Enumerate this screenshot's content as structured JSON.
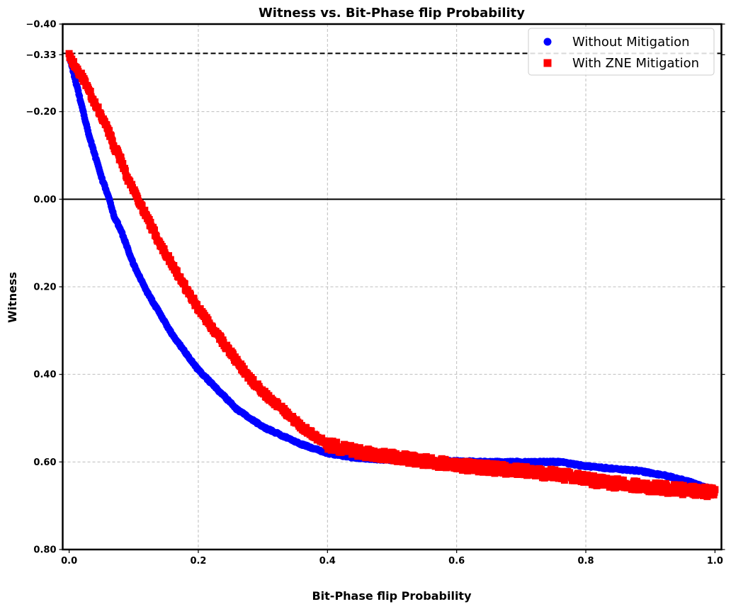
{
  "chart_data": {
    "type": "scatter",
    "title": "Witness vs. Bit-Phase flip Probability",
    "xlabel": "Bit-Phase flip Probability",
    "ylabel": "Witness",
    "xlim": [
      -0.01,
      1.01
    ],
    "ylim": [
      -0.4,
      0.8
    ],
    "y_inverted": true,
    "grid": true,
    "legend_position": "top-right",
    "x_ticks": [
      0.0,
      0.2,
      0.4,
      0.6,
      0.8,
      1.0
    ],
    "x_tick_labels": [
      "0.0",
      "0.2",
      "0.4",
      "0.6",
      "0.8",
      "1.0"
    ],
    "y_ticks": [
      -0.4,
      -0.33,
      -0.2,
      0.0,
      0.2,
      0.4,
      0.6,
      0.8
    ],
    "y_tick_labels": [
      "−0.40",
      "−0.33",
      "−0.20",
      "0.00",
      "0.20",
      "0.40",
      "0.60",
      "0.80"
    ],
    "y_gridlines": [
      -0.2,
      0.2,
      0.4,
      0.6
    ],
    "reference_lines": [
      {
        "y": -0.333,
        "style": "dashed",
        "color": "#000000"
      },
      {
        "y": 0.0,
        "style": "solid",
        "color": "#000000"
      }
    ],
    "series": [
      {
        "name": "Without Mitigation",
        "marker": "circle",
        "color": "#0000ff",
        "x": [
          0.0,
          0.01,
          0.02,
          0.03,
          0.04,
          0.05,
          0.06,
          0.07,
          0.08,
          0.09,
          0.1,
          0.12,
          0.14,
          0.16,
          0.18,
          0.2,
          0.22,
          0.24,
          0.26,
          0.28,
          0.3,
          0.33,
          0.36,
          0.4,
          0.44,
          0.48,
          0.52,
          0.56,
          0.6,
          0.64,
          0.68,
          0.72,
          0.76,
          0.8,
          0.84,
          0.88,
          0.92,
          0.96,
          1.0
        ],
        "y": [
          -0.33,
          -0.27,
          -0.21,
          -0.15,
          -0.1,
          -0.05,
          -0.01,
          0.04,
          0.07,
          0.11,
          0.15,
          0.21,
          0.26,
          0.31,
          0.35,
          0.39,
          0.42,
          0.45,
          0.48,
          0.5,
          0.52,
          0.54,
          0.56,
          0.58,
          0.59,
          0.594,
          0.597,
          0.598,
          0.598,
          0.6,
          0.6,
          0.6,
          0.6,
          0.61,
          0.615,
          0.62,
          0.63,
          0.645,
          0.665
        ]
      },
      {
        "name": "With ZNE Mitigation",
        "marker": "square",
        "color": "#ff0000",
        "x": [
          0.0,
          0.01,
          0.02,
          0.03,
          0.04,
          0.05,
          0.06,
          0.07,
          0.08,
          0.09,
          0.1,
          0.12,
          0.14,
          0.16,
          0.18,
          0.2,
          0.22,
          0.24,
          0.26,
          0.28,
          0.3,
          0.33,
          0.36,
          0.4,
          0.44,
          0.48,
          0.52,
          0.56,
          0.6,
          0.64,
          0.68,
          0.72,
          0.76,
          0.8,
          0.84,
          0.88,
          0.92,
          0.96,
          1.0
        ],
        "y": [
          -0.33,
          -0.3,
          -0.28,
          -0.25,
          -0.22,
          -0.19,
          -0.16,
          -0.12,
          -0.09,
          -0.05,
          -0.02,
          0.04,
          0.1,
          0.15,
          0.2,
          0.25,
          0.29,
          0.33,
          0.37,
          0.41,
          0.44,
          0.48,
          0.52,
          0.56,
          0.575,
          0.585,
          0.592,
          0.6,
          0.607,
          0.613,
          0.618,
          0.623,
          0.63,
          0.64,
          0.648,
          0.655,
          0.66,
          0.665,
          0.67
        ]
      }
    ]
  }
}
